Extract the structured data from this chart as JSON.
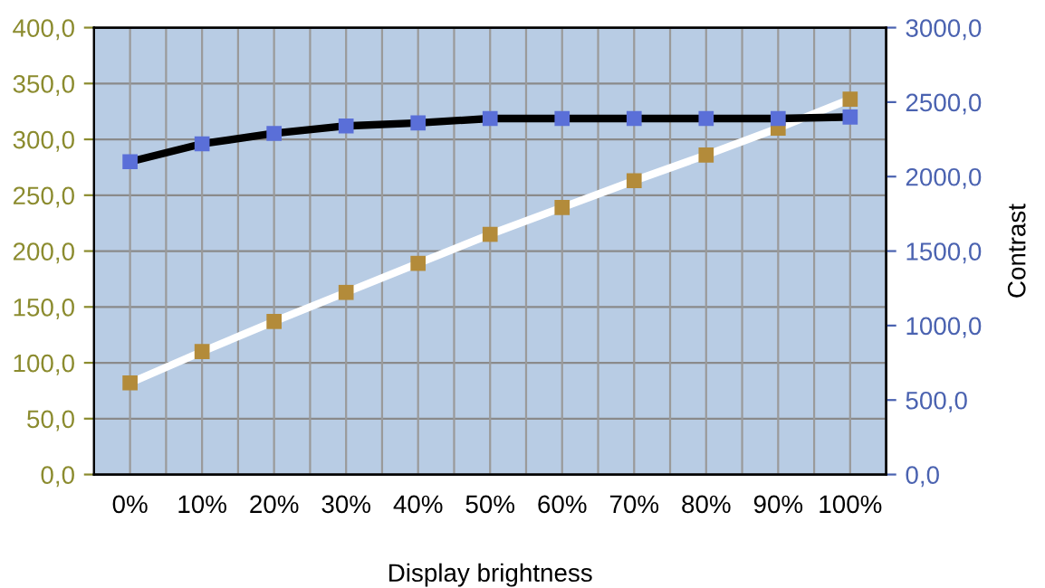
{
  "chart_data": {
    "type": "line",
    "xlabel": "Display brightness",
    "y2label": "Contrast",
    "categories": [
      "0%",
      "10%",
      "20%",
      "30%",
      "40%",
      "50%",
      "60%",
      "70%",
      "80%",
      "90%",
      "100%"
    ],
    "series": [
      {
        "color": "#000000",
        "colors": [
          "#5a6fd8",
          "#5a6fd8",
          "#5a6fd8",
          "#5a6fd8",
          "#5a6fd8",
          "#5a6fd8",
          "#5a6fd8",
          "#5a6fd8",
          "#5a6fd8",
          "#5a6fd8",
          "#5a6fd8"
        ],
        "axis": "y2",
        "values": [
          2100,
          2220,
          2290,
          2340,
          2360,
          2390,
          2390,
          2390,
          2390,
          2390,
          2400
        ]
      },
      {
        "color": "#ffffff",
        "colors": [
          "#b38b3a",
          "#b38b3a",
          "#b38b3a",
          "#b38b3a",
          "#b38b3a",
          "#b38b3a",
          "#b38b3a",
          "#b38b3a",
          "#b38b3a",
          "#b38b3a",
          "#b38b3a"
        ],
        "values": [
          82,
          110,
          137,
          163,
          189,
          215,
          239,
          263,
          286,
          310,
          336
        ]
      }
    ],
    "ylim": [
      0,
      400
    ],
    "yticks": [
      {
        "value": 0,
        "label": "0,0"
      },
      {
        "value": 50,
        "label": "50,0"
      },
      {
        "value": 100,
        "label": "100,0"
      },
      {
        "value": 150,
        "label": "150,0"
      },
      {
        "value": 200,
        "label": "200,0"
      },
      {
        "value": 250,
        "label": "250,0"
      },
      {
        "value": 300,
        "label": "300,0"
      },
      {
        "value": 350,
        "label": "350,0"
      },
      {
        "value": 400,
        "label": "400,0"
      }
    ],
    "y2lim": [
      0,
      3000
    ],
    "y2ticks": [
      {
        "value": 0,
        "label": "0,0"
      },
      {
        "value": 500,
        "label": "500,0"
      },
      {
        "value": 1000,
        "label": "1000,0"
      },
      {
        "value": 1500,
        "label": "1500,0"
      },
      {
        "value": 2000,
        "label": "2000,0"
      },
      {
        "value": 2500,
        "label": "2500,0"
      },
      {
        "value": 3000,
        "label": "3000,0"
      }
    ],
    "grid": true,
    "marker": "square",
    "line_style": "solid",
    "legend": false
  }
}
